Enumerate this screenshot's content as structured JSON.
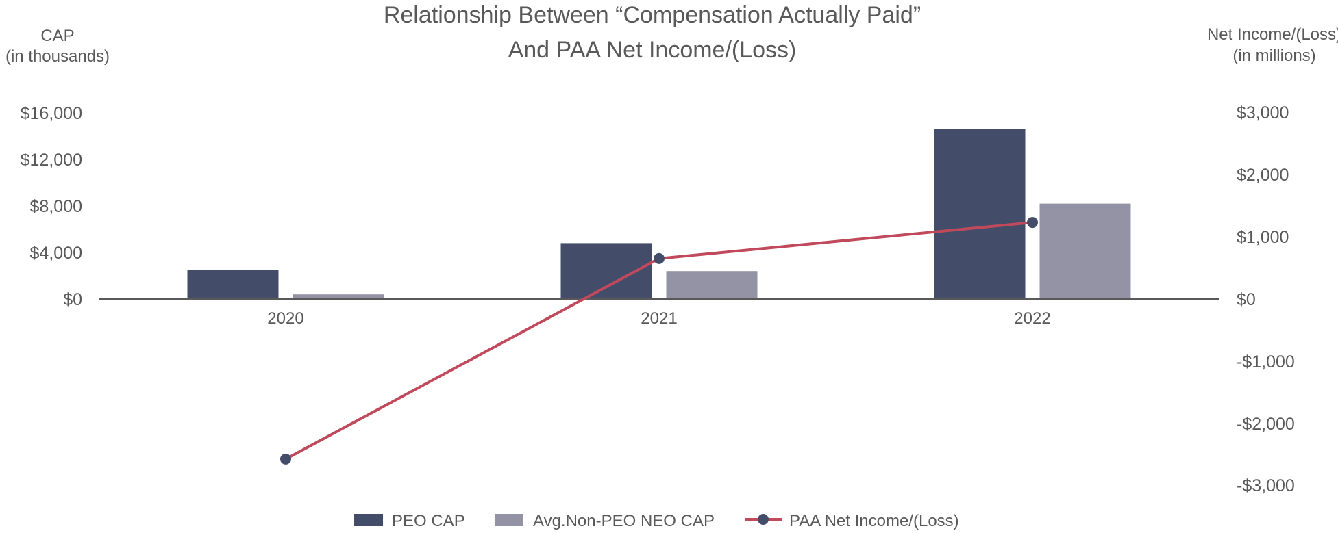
{
  "chart_data": {
    "type": "bar",
    "title_line1": "Relationship Between “Compensation Actually Paid”",
    "title_line2": "And PAA Net Income/(Loss)",
    "y_left_label_line1": "CAP",
    "y_left_label_line2": "(in thousands)",
    "y_right_label_line1": "Net Income/(Loss)",
    "y_right_label_line2": "(in millions)",
    "categories": [
      "2020",
      "2021",
      "2022"
    ],
    "y_left_ticks": [
      "$16,000",
      "$12,000",
      "$8,000",
      "$4,000",
      "$0"
    ],
    "y_right_ticks": [
      "$3,000",
      "$2,000",
      "$1,000",
      "$0",
      "-$1,000",
      "-$2,000",
      "-$3,000"
    ],
    "y_left_range": [
      -16000,
      16000
    ],
    "y_right_range": [
      -3000,
      3000
    ],
    "series": [
      {
        "name": "PEO CAP",
        "type": "bar",
        "axis": "left",
        "color": "#434D69",
        "values": [
          2500,
          4800,
          14600
        ]
      },
      {
        "name": "Avg.Non-PEO NEO CAP",
        "type": "bar",
        "axis": "left",
        "color": "#9393A5",
        "values": [
          400,
          2400,
          8200
        ]
      },
      {
        "name": "PAA Net Income/(Loss)",
        "type": "line",
        "axis": "right",
        "color": "#C04A5C",
        "marker_color": "#434D69",
        "values": [
          -2570,
          650,
          1230
        ]
      }
    ],
    "legend_position": "bottom",
    "grid": false
  }
}
